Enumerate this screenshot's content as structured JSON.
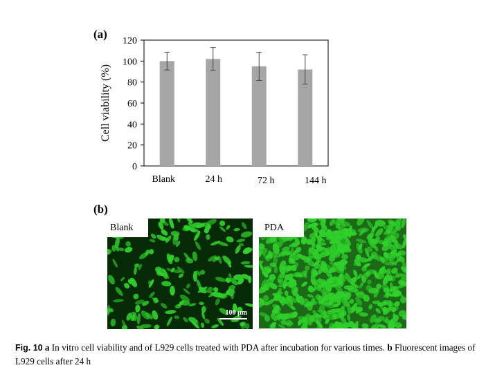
{
  "panel_a_label": "(a)",
  "panel_b_label": "(b)",
  "chart_data": {
    "type": "bar",
    "ylabel": "Cell viability (%)",
    "xlabel": "",
    "categories": [
      "Blank",
      "24 h",
      "72  h",
      "144  h"
    ],
    "values": [
      100,
      102,
      95,
      92
    ],
    "errors": [
      8.5,
      11,
      13.5,
      14
    ],
    "ylim": [
      0,
      120
    ],
    "yticks": [
      0,
      20,
      40,
      60,
      80,
      100,
      120
    ],
    "grid": false,
    "bar_color": "#a6a6a6"
  },
  "images": {
    "blank_tag": "Blank",
    "pda_tag": "PDA",
    "scale_label": "100 μm",
    "fluorescence_color": "#2fd02a"
  },
  "caption": {
    "fig_label": "Fig. 10",
    "a_marker": "a",
    "a_text": " In vitro cell viability and of L929 cells treated with PDA after incubation for various times. ",
    "b_marker": "b",
    "b_text": " Fluorescent images of L929 cells after 24 h"
  }
}
